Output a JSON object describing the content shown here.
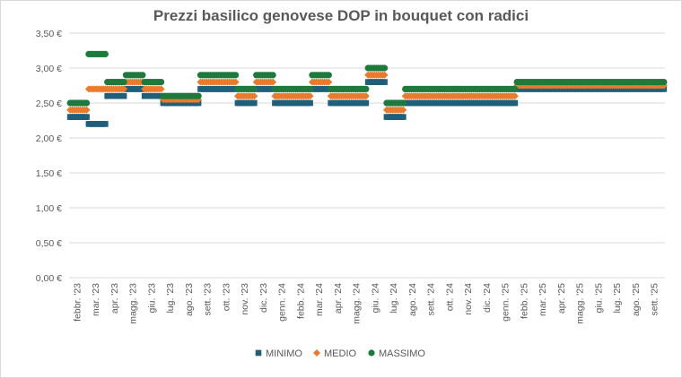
{
  "chart_data": {
    "type": "scatter",
    "title": "Prezzi basilico genovese DOP in bouquet con radici",
    "xlabel": "",
    "ylabel": "",
    "ylim": [
      0,
      3.5
    ],
    "y_ticks": [
      "0,00 €",
      "0,50 €",
      "1,00 €",
      "1,50 €",
      "2,00 €",
      "2,50 €",
      "3,00 €",
      "3,50 €"
    ],
    "grid": true,
    "legend_position": "bottom",
    "categories": [
      "febbr. '23",
      "mar. '23",
      "apr. '23",
      "magg. '23",
      "giu. '23",
      "lug. '23",
      "ago. '23",
      "sett. '23",
      "ott. '23",
      "nov. '23",
      "dic. '23",
      "genn. '24",
      "febb. '24",
      "mar. '24",
      "apr. '24",
      "magg. '24",
      "giu. '24",
      "lug. '24",
      "ago. '24",
      "sett. '24",
      "ott. '24",
      "nov. '24",
      "dic. '24",
      "genn. '25",
      "febb. '25",
      "mar. '25",
      "apr. '25",
      "magg. '25",
      "giu. '25",
      "lug. '25",
      "ago. '25",
      "sett. '25"
    ],
    "colors": {
      "MINIMO": "#1f5f7a",
      "MEDIO": "#e97a2e",
      "MASSIMO": "#1e7a3c"
    },
    "series": [
      {
        "name": "MINIMO",
        "marker": "square",
        "values": [
          2.3,
          2.2,
          2.6,
          2.7,
          2.6,
          2.5,
          2.5,
          2.7,
          2.7,
          2.5,
          2.7,
          2.5,
          2.5,
          2.7,
          2.5,
          2.5,
          2.8,
          2.3,
          2.5,
          2.5,
          2.5,
          2.5,
          2.5,
          2.5,
          2.7,
          2.7,
          2.7,
          2.7,
          2.7,
          2.7,
          2.7,
          2.7
        ]
      },
      {
        "name": "MEDIO",
        "marker": "diamond",
        "values": [
          2.4,
          2.7,
          2.7,
          2.8,
          2.7,
          2.55,
          2.55,
          2.8,
          2.8,
          2.6,
          2.8,
          2.6,
          2.6,
          2.8,
          2.6,
          2.6,
          2.9,
          2.4,
          2.6,
          2.6,
          2.6,
          2.6,
          2.6,
          2.6,
          2.75,
          2.75,
          2.75,
          2.75,
          2.75,
          2.75,
          2.75,
          2.75
        ]
      },
      {
        "name": "MASSIMO",
        "marker": "circle",
        "values": [
          2.5,
          3.2,
          2.8,
          2.9,
          2.8,
          2.6,
          2.6,
          2.9,
          2.9,
          2.7,
          2.9,
          2.7,
          2.7,
          2.9,
          2.7,
          2.7,
          3.0,
          2.5,
          2.7,
          2.7,
          2.7,
          2.7,
          2.7,
          2.7,
          2.8,
          2.8,
          2.8,
          2.8,
          2.8,
          2.8,
          2.8,
          2.8
        ]
      }
    ]
  }
}
